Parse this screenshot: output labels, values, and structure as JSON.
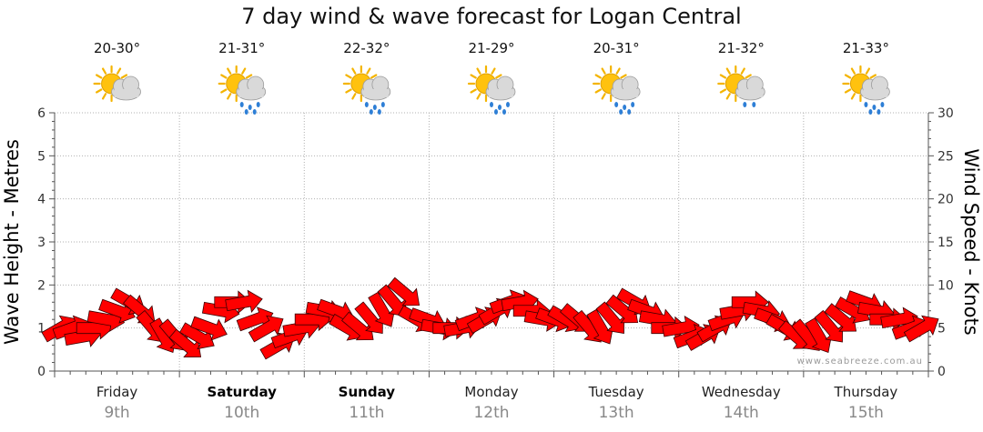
{
  "title": "7 day wind & wave forecast for Logan Central",
  "watermark": "www.seabreeze.com.au",
  "chart_data": {
    "type": "line",
    "title": "7 day wind & wave forecast for Logan Central",
    "ylabel_left": "Wave Height - Metres",
    "ylabel_right": "Wind Speed - Knots",
    "ylim_left": [
      0,
      6
    ],
    "ylim_right": [
      0,
      30
    ],
    "left_ticks": [
      "0",
      "1",
      "2",
      "3",
      "4",
      "5",
      "6"
    ],
    "right_ticks": [
      "0",
      "5",
      "10",
      "15",
      "20",
      "25",
      "30"
    ],
    "grid": true,
    "days": [
      {
        "name": "Friday",
        "date": "9th",
        "temp": "20-30°",
        "icon": "partly-cloudy-icon",
        "bold": false
      },
      {
        "name": "Saturday",
        "date": "10th",
        "temp": "21-31°",
        "icon": "showers-icon",
        "bold": true
      },
      {
        "name": "Sunday",
        "date": "11th",
        "temp": "22-32°",
        "icon": "showers-icon",
        "bold": true
      },
      {
        "name": "Monday",
        "date": "12th",
        "temp": "21-29°",
        "icon": "showers-icon",
        "bold": false
      },
      {
        "name": "Tuesday",
        "date": "13th",
        "temp": "20-31°",
        "icon": "showers-icon",
        "bold": false
      },
      {
        "name": "Wednesday",
        "date": "14th",
        "temp": "21-32°",
        "icon": "light-showers-icon",
        "bold": false
      },
      {
        "name": "Thursday",
        "date": "15th",
        "temp": "21-33°",
        "icon": "showers-icon",
        "bold": false
      }
    ],
    "series": [
      {
        "name": "Wind Speed - Knots",
        "color": "#ff0000",
        "hours_step": 3,
        "values": [
          5,
          5,
          4,
          5,
          6,
          7,
          8,
          7,
          5,
          4,
          4,
          3,
          4,
          5,
          7,
          8,
          8,
          6,
          5,
          3,
          4,
          5,
          6,
          7,
          7,
          5,
          5,
          6,
          7,
          8,
          9,
          6,
          6,
          5,
          5,
          5,
          6,
          6,
          7,
          8,
          8,
          7,
          6,
          6,
          6,
          6,
          5,
          5,
          6,
          7,
          8,
          7,
          6,
          5,
          5,
          4,
          4,
          5,
          6,
          7,
          8,
          7,
          6,
          5,
          4,
          4,
          4,
          5,
          6,
          7,
          8,
          7,
          6,
          6,
          5,
          5
        ]
      },
      {
        "name": "Wind Direction",
        "unit": "degrees (from)",
        "values": [
          60,
          70,
          80,
          90,
          100,
          110,
          120,
          130,
          140,
          150,
          140,
          130,
          120,
          110,
          100,
          90,
          80,
          70,
          60,
          60,
          70,
          80,
          90,
          100,
          110,
          120,
          130,
          140,
          150,
          140,
          130,
          120,
          110,
          100,
          90,
          80,
          70,
          60,
          60,
          70,
          80,
          90,
          100,
          110,
          120,
          130,
          140,
          150,
          140,
          130,
          120,
          110,
          100,
          90,
          80,
          70,
          60,
          60,
          70,
          80,
          90,
          100,
          110,
          120,
          130,
          140,
          150,
          140,
          130,
          120,
          110,
          100,
          90,
          80,
          70,
          60
        ]
      }
    ]
  }
}
